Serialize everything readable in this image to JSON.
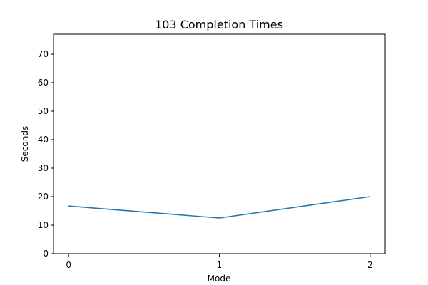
{
  "chart_data": {
    "type": "line",
    "title": "103 Completion Times",
    "xlabel": "Mode",
    "ylabel": "Seconds",
    "x": [
      0,
      1,
      2
    ],
    "x_ticks": [
      "0",
      "1",
      "2"
    ],
    "xlim": [
      -0.1,
      2.1
    ],
    "ylim": [
      0,
      77
    ],
    "y_ticks": [
      0,
      10,
      20,
      30,
      40,
      50,
      60,
      70
    ],
    "grid": false,
    "series": [
      {
        "values": [
          16.7,
          12.5,
          20.0
        ],
        "color": "#1f77b4"
      }
    ]
  }
}
